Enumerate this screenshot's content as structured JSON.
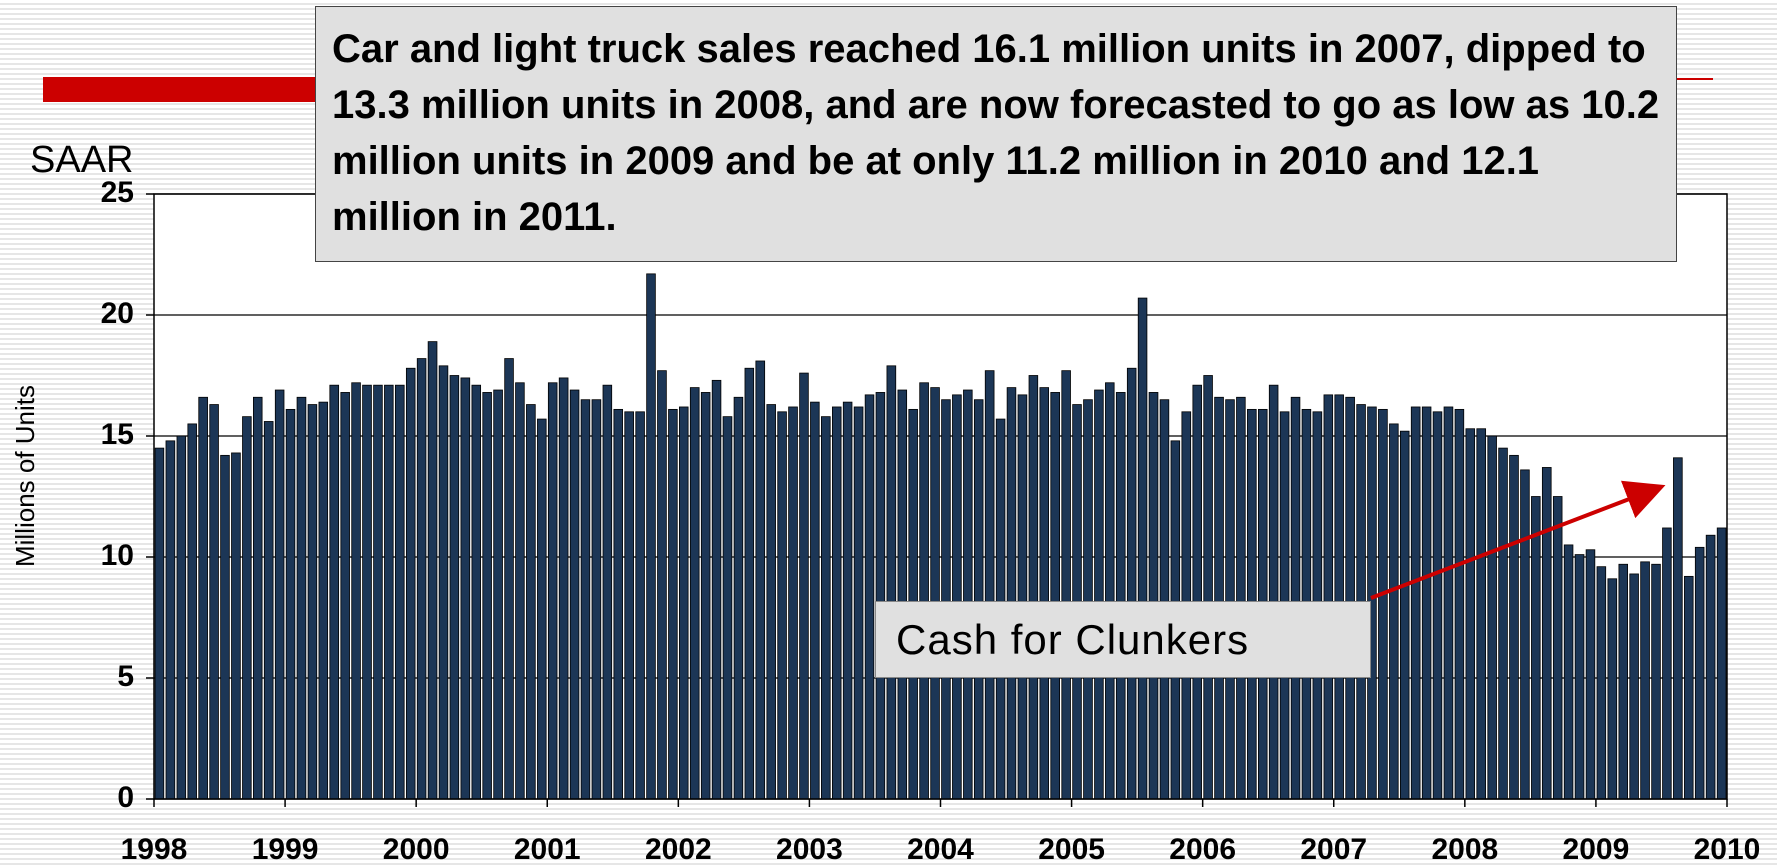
{
  "chart_data": {
    "type": "bar",
    "title": "Car and light truck sales reached 16.1 million units in 2007, dipped to 13.3 million units in 2008, and are now forecasted to go as low as 10.2 million units in 2009 and be at only 11.2 million in 2010 and 12.1 million in 2011.",
    "unit_label": "SAAR",
    "y_label": "Millions of Units",
    "annotations": [
      "Cash for Clunkers"
    ],
    "color": "#1c3656",
    "grid": true,
    "xlim": [
      1998,
      2010
    ],
    "xticks": [
      1998,
      1999,
      2000,
      2001,
      2002,
      2003,
      2004,
      2005,
      2006,
      2007,
      2008,
      2009,
      2010
    ],
    "ylim": [
      0,
      25
    ],
    "yticks": [
      0,
      5,
      10,
      15,
      20,
      25
    ],
    "x": [
      1998,
      1998.083,
      1998.167,
      1998.25,
      1998.333,
      1998.417,
      1998.5,
      1998.583,
      1998.667,
      1998.75,
      1998.833,
      1998.917,
      1999,
      1999.083,
      1999.167,
      1999.25,
      1999.333,
      1999.417,
      1999.5,
      1999.583,
      1999.667,
      1999.75,
      1999.833,
      1999.917,
      2000,
      2000.083,
      2000.167,
      2000.25,
      2000.333,
      2000.417,
      2000.5,
      2000.583,
      2000.667,
      2000.75,
      2000.833,
      2000.917,
      2001,
      2001.083,
      2001.167,
      2001.25,
      2001.333,
      2001.417,
      2001.5,
      2001.583,
      2001.667,
      2001.75,
      2001.833,
      2001.917,
      2002,
      2002.083,
      2002.167,
      2002.25,
      2002.333,
      2002.417,
      2002.5,
      2002.583,
      2002.667,
      2002.75,
      2002.833,
      2002.917,
      2003,
      2003.083,
      2003.167,
      2003.25,
      2003.333,
      2003.417,
      2003.5,
      2003.583,
      2003.667,
      2003.75,
      2003.833,
      2003.917,
      2004,
      2004.083,
      2004.167,
      2004.25,
      2004.333,
      2004.417,
      2004.5,
      2004.583,
      2004.667,
      2004.75,
      2004.833,
      2004.917,
      2005,
      2005.083,
      2005.167,
      2005.25,
      2005.333,
      2005.417,
      2005.5,
      2005.583,
      2005.667,
      2005.75,
      2005.833,
      2005.917,
      2006,
      2006.083,
      2006.167,
      2006.25,
      2006.333,
      2006.417,
      2006.5,
      2006.583,
      2006.667,
      2006.75,
      2006.833,
      2006.917,
      2007,
      2007.083,
      2007.167,
      2007.25,
      2007.333,
      2007.417,
      2007.5,
      2007.583,
      2007.667,
      2007.75,
      2007.833,
      2007.917,
      2008,
      2008.083,
      2008.167,
      2008.25,
      2008.333,
      2008.417,
      2008.5,
      2008.583,
      2008.667,
      2008.75,
      2008.833,
      2008.917,
      2009,
      2009.083,
      2009.167,
      2009.25,
      2009.333,
      2009.417,
      2009.5,
      2009.583,
      2009.667,
      2009.75,
      2009.833,
      2009.917
    ],
    "values": [
      14.5,
      14.8,
      15.0,
      15.5,
      16.6,
      16.3,
      14.2,
      14.3,
      15.8,
      16.6,
      15.6,
      16.9,
      16.1,
      16.6,
      16.3,
      16.4,
      17.1,
      16.8,
      17.2,
      17.1,
      17.1,
      17.1,
      17.1,
      17.8,
      18.2,
      18.9,
      17.9,
      17.5,
      17.4,
      17.1,
      16.8,
      16.9,
      18.2,
      17.2,
      16.3,
      15.7,
      17.2,
      17.4,
      16.9,
      16.5,
      16.5,
      17.1,
      16.1,
      16.0,
      16.0,
      21.7,
      17.7,
      16.1,
      16.2,
      17.0,
      16.8,
      17.3,
      15.8,
      16.6,
      17.8,
      18.1,
      16.3,
      16.0,
      16.2,
      17.6,
      16.4,
      15.8,
      16.2,
      16.4,
      16.2,
      16.7,
      16.8,
      17.9,
      16.9,
      16.1,
      17.2,
      17.0,
      16.5,
      16.7,
      16.9,
      16.5,
      17.7,
      15.7,
      17.0,
      16.7,
      17.5,
      17.0,
      16.8,
      17.7,
      16.3,
      16.5,
      16.9,
      17.2,
      16.8,
      17.8,
      20.7,
      16.8,
      16.5,
      14.8,
      16.0,
      17.1,
      17.5,
      16.6,
      16.5,
      16.6,
      16.1,
      16.1,
      17.1,
      16.0,
      16.6,
      16.1,
      16.0,
      16.7,
      16.7,
      16.6,
      16.3,
      16.2,
      16.1,
      15.5,
      15.2,
      16.2,
      16.2,
      16.0,
      16.2,
      16.1,
      15.3,
      15.3,
      15.0,
      14.5,
      14.2,
      13.6,
      12.5,
      13.7,
      12.5,
      10.5,
      10.1,
      10.3,
      9.6,
      9.1,
      9.7,
      9.3,
      9.8,
      9.7,
      11.2,
      14.1,
      9.2,
      10.4,
      10.9,
      11.2
    ]
  }
}
